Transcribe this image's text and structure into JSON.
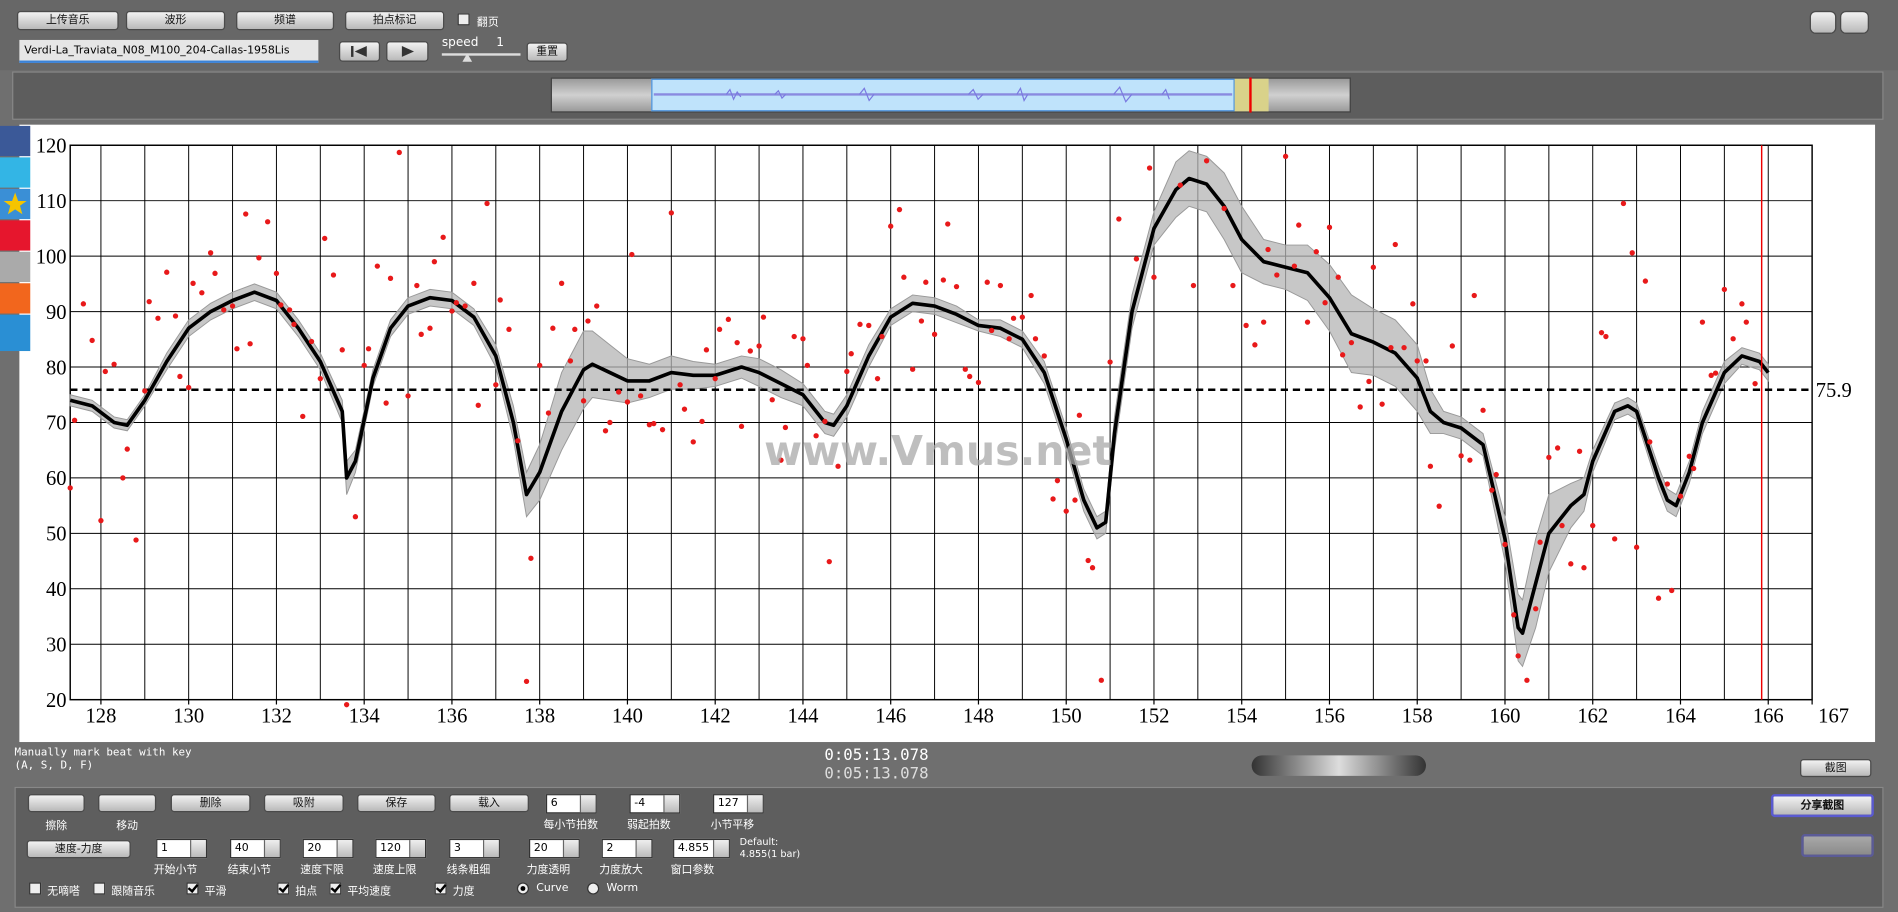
{
  "toolbar": {
    "buttons": [
      "上传音乐",
      "波形",
      "频谱",
      "拍点标记"
    ],
    "page_turn": "翻页",
    "file_name": "Verdi-La_Traviata_N08_M100_204-Callas-1958Lis",
    "speed_label": "speed",
    "speed_value": 1,
    "reset": "重置"
  },
  "status": {
    "hint": "Manually mark beat with key",
    "keys": "(A, S, D, F)",
    "time_1": "0:05:13.078",
    "time_2": "0:05:13.078",
    "screenshot": "截图"
  },
  "watermark": "www.Vmus.net",
  "panel": {
    "tools": [
      "擦除",
      "移动"
    ],
    "actions": [
      "删除",
      "吸附",
      "保存",
      "载入"
    ],
    "beat_fields": [
      {
        "value": 6,
        "label": "每小节拍数"
      },
      {
        "value": -4,
        "label": "弱起拍数"
      },
      {
        "value": 127,
        "label": "小节平移"
      }
    ],
    "mode": "速度-力度",
    "fields": [
      {
        "value": 1,
        "label": "开始小节"
      },
      {
        "value": 40,
        "label": "结束小节"
      },
      {
        "value": 20,
        "label": "速度下限"
      },
      {
        "value": 120,
        "label": "速度上限"
      },
      {
        "value": 3,
        "label": "线条粗细"
      },
      {
        "value": 20,
        "label": "力度透明"
      },
      {
        "value": 2,
        "label": "力度放大"
      },
      {
        "value": 4.855,
        "label": "窗口参数"
      }
    ],
    "default_title": "Default:",
    "default_value": "4.855(1 bar)",
    "options": [
      {
        "label": "无嘀嗒",
        "checked": false
      },
      {
        "label": "跟随音乐",
        "checked": false
      },
      {
        "label": "平滑",
        "checked": true
      },
      {
        "label": "拍点",
        "checked": true
      },
      {
        "label": "平均速度",
        "checked": true
      },
      {
        "label": "力度",
        "checked": true
      }
    ],
    "curve_modes": [
      {
        "label": "Curve",
        "selected": true
      },
      {
        "label": "Worm",
        "selected": false
      }
    ],
    "share": "分享截图"
  },
  "chart_data": {
    "type": "scatter",
    "xlim": [
      127.3,
      167
    ],
    "ylim": [
      20,
      120
    ],
    "xticks": [
      128,
      130,
      132,
      134,
      136,
      138,
      140,
      142,
      144,
      146,
      148,
      150,
      152,
      154,
      156,
      158,
      160,
      162,
      164,
      166,
      167
    ],
    "xgrid": [
      128,
      129,
      130,
      131,
      132,
      133,
      134,
      135,
      136,
      137,
      138,
      139,
      140,
      141,
      142,
      143,
      144,
      145,
      146,
      147,
      148,
      149,
      150,
      151,
      152,
      153,
      154,
      155,
      156,
      157,
      158,
      159,
      160,
      161,
      162,
      163,
      164,
      165,
      166
    ],
    "yticks": [
      20,
      30,
      40,
      50,
      60,
      70,
      80,
      90,
      100,
      110,
      120
    ],
    "grid": true,
    "points": {
      "color": "#e8191a",
      "x": [
        127.3,
        127.4,
        127.6,
        127.8,
        128,
        128.1,
        128.3,
        128.5,
        128.6,
        128.8,
        129,
        129.1,
        129.3,
        129.5,
        129.7,
        129.8,
        130,
        130.1,
        130.3,
        130.5,
        130.6,
        130.8,
        131,
        131.1,
        131.3,
        131.4,
        131.6,
        131.8,
        132,
        132.1,
        132.3,
        132.4,
        132.6,
        132.8,
        133,
        133.1,
        133.3,
        133.5,
        133.6,
        133.8,
        134,
        134.1,
        134.3,
        134.5,
        134.6,
        134.8,
        135,
        135.2,
        135.3,
        135.5,
        135.6,
        135.8,
        136,
        136.1,
        136.3,
        136.5,
        136.6,
        136.8,
        137,
        137.1,
        137.3,
        137.5,
        137.7,
        137.8,
        138,
        138.2,
        138.3,
        138.5,
        138.7,
        138.8,
        139,
        139.1,
        139.3,
        139.5,
        139.6,
        139.8,
        140,
        140.1,
        140.3,
        140.5,
        140.6,
        140.8,
        141,
        141.2,
        141.3,
        141.5,
        141.7,
        141.8,
        142,
        142.1,
        142.3,
        142.5,
        142.6,
        142.8,
        143,
        143.1,
        143.3,
        143.5,
        143.6,
        143.8,
        144,
        144.1,
        144.3,
        144.5,
        144.6,
        144.8,
        145,
        145.1,
        145.3,
        145.5,
        145.7,
        145.8,
        146,
        146.2,
        146.3,
        146.5,
        146.7,
        146.8,
        147,
        147.2,
        147.3,
        147.5,
        147.7,
        147.8,
        148,
        148.2,
        148.3,
        148.5,
        148.7,
        148.8,
        149,
        149.2,
        149.3,
        149.5,
        149.7,
        149.8,
        150,
        150.2,
        150.3,
        150.5,
        150.6,
        150.8,
        151,
        151.2,
        151.6,
        151.9,
        152,
        152.6,
        152.9,
        153.2,
        153.6,
        153.8,
        154.1,
        154.3,
        154.5,
        154.6,
        154.8,
        155,
        155.2,
        155.3,
        155.5,
        155.7,
        155.9,
        156,
        156.2,
        156.3,
        156.5,
        156.7,
        156.9,
        157,
        157.2,
        157.4,
        157.5,
        157.7,
        157.9,
        158,
        158.2,
        158.3,
        158.5,
        158.8,
        159,
        159.2,
        159.3,
        159.5,
        159.7,
        159.8,
        160,
        160.2,
        160.3,
        160.5,
        160.7,
        160.8,
        161,
        161.2,
        161.3,
        161.5,
        161.7,
        161.8,
        162,
        162.2,
        162.3,
        162.5,
        162.7,
        162.9,
        163,
        163.2,
        163.3,
        163.5,
        163.7,
        163.8,
        164,
        164.2,
        164.3,
        164.5,
        164.7,
        164.8,
        165,
        165.2,
        165.4,
        165.5,
        165.7
      ],
      "y": [
        58.2,
        70.4,
        91.4,
        84.8,
        52.3,
        79.2,
        80.5,
        60,
        65.2,
        48.8,
        75.7,
        91.8,
        88.8,
        97.1,
        89.2,
        78.3,
        76.3,
        95.1,
        93.4,
        100.6,
        96.9,
        90.3,
        91,
        83.3,
        107.6,
        84.2,
        99.7,
        106.2,
        96.9,
        91.2,
        90.3,
        87.7,
        71.1,
        84.6,
        77.9,
        103.2,
        96.6,
        83.1,
        19.1,
        53,
        80.3,
        83.3,
        98.2,
        73.5,
        96,
        118.7,
        74.8,
        94.7,
        85.9,
        87,
        99,
        103.4,
        90.1,
        91.6,
        91,
        95.1,
        73.1,
        109.5,
        76.8,
        92.1,
        86.8,
        66.7,
        23.3,
        45.5,
        80.3,
        71.7,
        87,
        95.1,
        81.1,
        86.8,
        73.9,
        88.3,
        91,
        68.5,
        70,
        75.5,
        73.7,
        100.3,
        74.8,
        69.6,
        69.8,
        68.7,
        107.8,
        76.8,
        72.4,
        66.5,
        70.2,
        83.1,
        77.9,
        86.8,
        88.6,
        84.4,
        69.3,
        82.9,
        83.8,
        89,
        74.1,
        63.2,
        69.1,
        85.5,
        85.1,
        80.3,
        67.6,
        70.2,
        44.9,
        62.1,
        79.2,
        82.4,
        87.7,
        87.5,
        77.9,
        85.5,
        105.4,
        108.4,
        96.2,
        79.6,
        88.3,
        95.3,
        85.9,
        95.7,
        105.8,
        94.5,
        79.6,
        78.3,
        77.2,
        95.3,
        86.6,
        94.7,
        85.1,
        88.8,
        89,
        92.9,
        85.1,
        82,
        56.2,
        59.5,
        54,
        56,
        71.3,
        45.1,
        43.8,
        23.5,
        80.9,
        106.7,
        99.5,
        115.9,
        96.2,
        112.8,
        94.7,
        117.2,
        108.6,
        94.7,
        87.5,
        84,
        88.1,
        101.2,
        96.6,
        118,
        98.2,
        105.6,
        88.1,
        100.8,
        91.6,
        105.2,
        96.2,
        82.2,
        84.4,
        72.8,
        77.4,
        98,
        73.3,
        83.5,
        102.1,
        83.5,
        91.4,
        81.1,
        81.1,
        62.1,
        54.9,
        83.8,
        64,
        63.2,
        92.9,
        72.2,
        57.8,
        60.6,
        48,
        35.3,
        27.9,
        23.5,
        36.4,
        48.4,
        63.7,
        65.4,
        51.4,
        44.5,
        64.8,
        43.8,
        51.4,
        86.2,
        85.5,
        49,
        109.5,
        100.6,
        47.5,
        95.5,
        66.5,
        38.3,
        58.9,
        39.7,
        56.7,
        63.9,
        61.7,
        88.1,
        78.5,
        78.9,
        94,
        85.1,
        91.4,
        88.1,
        77
      ]
    },
    "curve": {
      "color": "#000000",
      "band_color": "#b4b4b4",
      "x": [
        127.3,
        127.8,
        128.3,
        128.6,
        129,
        129.5,
        130,
        130.5,
        131,
        131.5,
        132,
        132.5,
        133,
        133.5,
        133.6,
        133.8,
        134.2,
        134.6,
        135,
        135.5,
        136,
        136.5,
        137,
        137.4,
        137.7,
        138,
        138.5,
        139,
        139.2,
        139.6,
        140,
        140.5,
        141,
        141.5,
        142,
        142.6,
        143,
        143.5,
        144,
        144.5,
        144.7,
        145,
        145.5,
        146,
        146.5,
        147,
        147.5,
        148,
        148.5,
        149,
        149.5,
        150,
        150.4,
        150.7,
        150.9,
        151.1,
        151.5,
        152,
        152.5,
        152.8,
        153.2,
        153.6,
        154,
        154.5,
        155,
        155.5,
        156,
        156.5,
        157,
        157.5,
        158,
        158.3,
        158.6,
        159,
        159.5,
        160,
        160.3,
        160.4,
        160.7,
        161,
        161.5,
        161.8,
        162,
        162.5,
        162.8,
        163,
        163.5,
        163.7,
        163.9,
        164.2,
        164.5,
        165,
        165.4,
        165.8,
        166
      ],
      "y": [
        74,
        73,
        70,
        69.5,
        74,
        81,
        87,
        90,
        92,
        93.5,
        92,
        87,
        81,
        72,
        60,
        63,
        78,
        87,
        91,
        92.5,
        92,
        89,
        82,
        70,
        57,
        61,
        72,
        79.5,
        80.5,
        79,
        77.5,
        77.5,
        79,
        78.5,
        78.5,
        80,
        79,
        77,
        75,
        70,
        69.5,
        73,
        82,
        89,
        91.5,
        91,
        89.5,
        87.5,
        87,
        85,
        79,
        67,
        56,
        51,
        52,
        68,
        90,
        105,
        112,
        114,
        113,
        109,
        103,
        99,
        98,
        97,
        92.5,
        86,
        84.5,
        82.5,
        78,
        72,
        70,
        69,
        66,
        49,
        33,
        32,
        41,
        50,
        55,
        57,
        63,
        72,
        73,
        72,
        60,
        56,
        55,
        61,
        70,
        79,
        82,
        81,
        79
      ],
      "spread": [
        1,
        1,
        1,
        1,
        1,
        1.5,
        1.5,
        1.5,
        1.5,
        1.5,
        1.5,
        1.5,
        1.5,
        2,
        3,
        2,
        1.5,
        1.5,
        1.5,
        1.5,
        1.5,
        1.5,
        2,
        3,
        4,
        5,
        7,
        7,
        6,
        5,
        4,
        3,
        3,
        2.5,
        2,
        2,
        2.5,
        2.5,
        2,
        2,
        2,
        2,
        2,
        1.5,
        1.5,
        1.5,
        1.5,
        1,
        1.5,
        1.5,
        2,
        2,
        2,
        2,
        2,
        3,
        3,
        3,
        5,
        5,
        5,
        6,
        6,
        4,
        4,
        5,
        6,
        7,
        6,
        6,
        6,
        4,
        2,
        2,
        2,
        4,
        6,
        6,
        8,
        7,
        4,
        3,
        2,
        1.5,
        1.5,
        1.5,
        2,
        2,
        2,
        2,
        2,
        2,
        1.5,
        1.5,
        1.5
      ]
    },
    "mean": 75.9,
    "cursor": 165.85
  }
}
